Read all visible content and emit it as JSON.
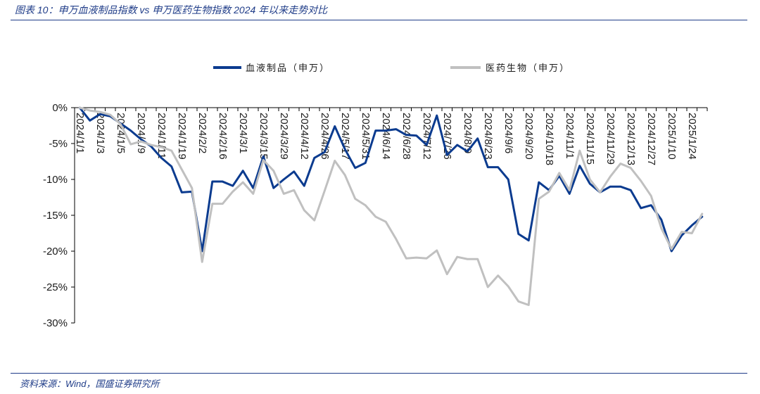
{
  "footer": {
    "source": "资料来源：Wind，国盛证券研究所"
  },
  "colors": {
    "accent": "#1f3c88"
  },
  "chart_data": {
    "type": "line",
    "title": "图表 10：申万血液制品指数 vs 申万医药生物指数 2024 年以来走势对比",
    "legend_position": "top",
    "grid": false,
    "y_unit": "%",
    "ylim": [
      -30,
      0
    ],
    "yticks": [
      0,
      -5,
      -10,
      -15,
      -20,
      -25,
      -30
    ],
    "ytick_labels": [
      "0%",
      "-5%",
      "-10%",
      "-15%",
      "-20%",
      "-25%",
      "-30%"
    ],
    "categories": [
      "2024/1/1",
      "",
      "2024/1/3",
      "",
      "2024/1/5",
      "",
      "2024/1/9",
      "",
      "2024/1/11",
      "",
      "2024/1/19",
      "",
      "2024/2/2",
      "",
      "2024/2/16",
      "",
      "2024/3/1",
      "",
      "2024/3/15",
      "",
      "2024/3/29",
      "",
      "2024/4/12",
      "",
      "2024/4/26",
      "",
      "2024/5/17",
      "",
      "2024/5/31",
      "",
      "2024/6/14",
      "",
      "2024/6/28",
      "",
      "2024/7/12",
      "",
      "2024/7/26",
      "",
      "2024/8/9",
      "",
      "2024/8/23",
      "",
      "2024/9/6",
      "",
      "2024/9/20",
      "",
      "2024/10/18",
      "",
      "2024/11/1",
      "",
      "2024/11/15",
      "",
      "2024/11/29",
      "",
      "2024/12/13",
      "",
      "2024/12/27",
      "",
      "2025/1/10",
      "",
      "2025/1/24",
      ""
    ],
    "series": [
      {
        "name": "血液制品（申万）",
        "color": "#0b3b8f",
        "values": [
          0,
          -1.8,
          -0.9,
          -1.2,
          -2.2,
          -3.2,
          -4.4,
          -5.4,
          -7.0,
          -8.2,
          -11.8,
          -11.7,
          -20.0,
          -10.3,
          -10.3,
          -10.9,
          -8.8,
          -11.2,
          -6.8,
          -11.2,
          -10.0,
          -8.9,
          -10.9,
          -7.0,
          -6.2,
          -2.6,
          -5.8,
          -8.4,
          -7.7,
          -3.2,
          -3.2,
          -3.0,
          -3.8,
          -3.9,
          -5.2,
          -1.1,
          -6.6,
          -5.2,
          -6.1,
          -4.3,
          -8.3,
          -8.3,
          -10.0,
          -17.6,
          -18.5,
          -10.4,
          -11.5,
          -9.5,
          -12.0,
          -8.1,
          -10.6,
          -11.8,
          -11.0,
          -11.0,
          -11.5,
          -14.0,
          -13.6,
          -15.6,
          -20.0,
          -17.8,
          -16.4,
          -15.2
        ]
      },
      {
        "name": "医药生物（申万）",
        "color": "#c0c0c0",
        "values": [
          0,
          -0.4,
          -0.6,
          -1.0,
          -2.3,
          -5.1,
          -4.7,
          -5.2,
          -5.5,
          -6.0,
          -8.6,
          -11.2,
          -21.5,
          -13.4,
          -13.4,
          -11.7,
          -10.4,
          -12.0,
          -7.3,
          -8.8,
          -12.0,
          -11.5,
          -14.3,
          -15.7,
          -11.6,
          -7.4,
          -9.4,
          -12.7,
          -13.6,
          -15.2,
          -15.9,
          -18.3,
          -21.0,
          -20.9,
          -21.0,
          -19.9,
          -23.2,
          -20.8,
          -21.1,
          -21.1,
          -25.0,
          -23.4,
          -24.9,
          -27.0,
          -27.5,
          -12.7,
          -11.7,
          -9.1,
          -11.5,
          -6.0,
          -10.0,
          -11.8,
          -9.6,
          -7.8,
          -8.4,
          -10.2,
          -12.3,
          -16.8,
          -19.7,
          -17.3,
          -17.5,
          -14.8
        ]
      }
    ]
  }
}
